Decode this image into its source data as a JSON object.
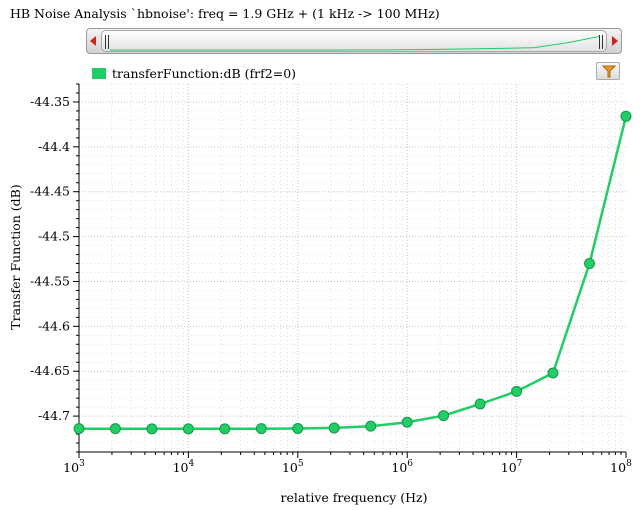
{
  "window": {
    "title": "HB Noise Analysis `hbnoise': freq = 1.9 GHz + (1 kHz -> 100 MHz)"
  },
  "legend": {
    "label": "transferFunction:dB (frf2=0)",
    "color": "#22cc66"
  },
  "icons": {
    "filter": "filter-icon",
    "scroll_left": "arrow-left-icon",
    "scroll_right": "arrow-right-icon"
  },
  "chart_data": {
    "type": "line",
    "xlabel": "relative frequency (Hz)",
    "ylabel": "Transfer Function (dB)",
    "x_scale": "log",
    "xlim": [
      1000,
      100000000
    ],
    "ylim": [
      -44.74,
      -44.33
    ],
    "x_ticks": [
      {
        "value": 1000,
        "base": "10",
        "exp": "3"
      },
      {
        "value": 10000,
        "base": "10",
        "exp": "4"
      },
      {
        "value": 100000,
        "base": "10",
        "exp": "5"
      },
      {
        "value": 1000000,
        "base": "10",
        "exp": "6"
      },
      {
        "value": 10000000,
        "base": "10",
        "exp": "7"
      },
      {
        "value": 100000000,
        "base": "10",
        "exp": "8"
      }
    ],
    "y_ticks": [
      {
        "value": -44.35,
        "label": "-44.35"
      },
      {
        "value": -44.4,
        "label": "-44.4"
      },
      {
        "value": -44.45,
        "label": "-44.45"
      },
      {
        "value": -44.5,
        "label": "-44.5"
      },
      {
        "value": -44.55,
        "label": "-44.55"
      },
      {
        "value": -44.6,
        "label": "-44.6"
      },
      {
        "value": -44.65,
        "label": "-44.65"
      },
      {
        "value": -44.7,
        "label": "-44.7"
      }
    ],
    "grid": true,
    "series": [
      {
        "color": "#22cc66",
        "x": [
          1000,
          2150,
          4640,
          10000,
          21500,
          46400,
          100000,
          215000,
          464000,
          1000000,
          2150000,
          4640000,
          10000000,
          21500000,
          46400000,
          100000000
        ],
        "y": [
          -44.714,
          -44.714,
          -44.7142,
          -44.7142,
          -44.7142,
          -44.714,
          -44.7138,
          -44.7132,
          -44.7112,
          -44.7068,
          -44.6995,
          -44.6865,
          -44.6725,
          -44.652,
          -44.53,
          -44.366
        ]
      }
    ]
  }
}
